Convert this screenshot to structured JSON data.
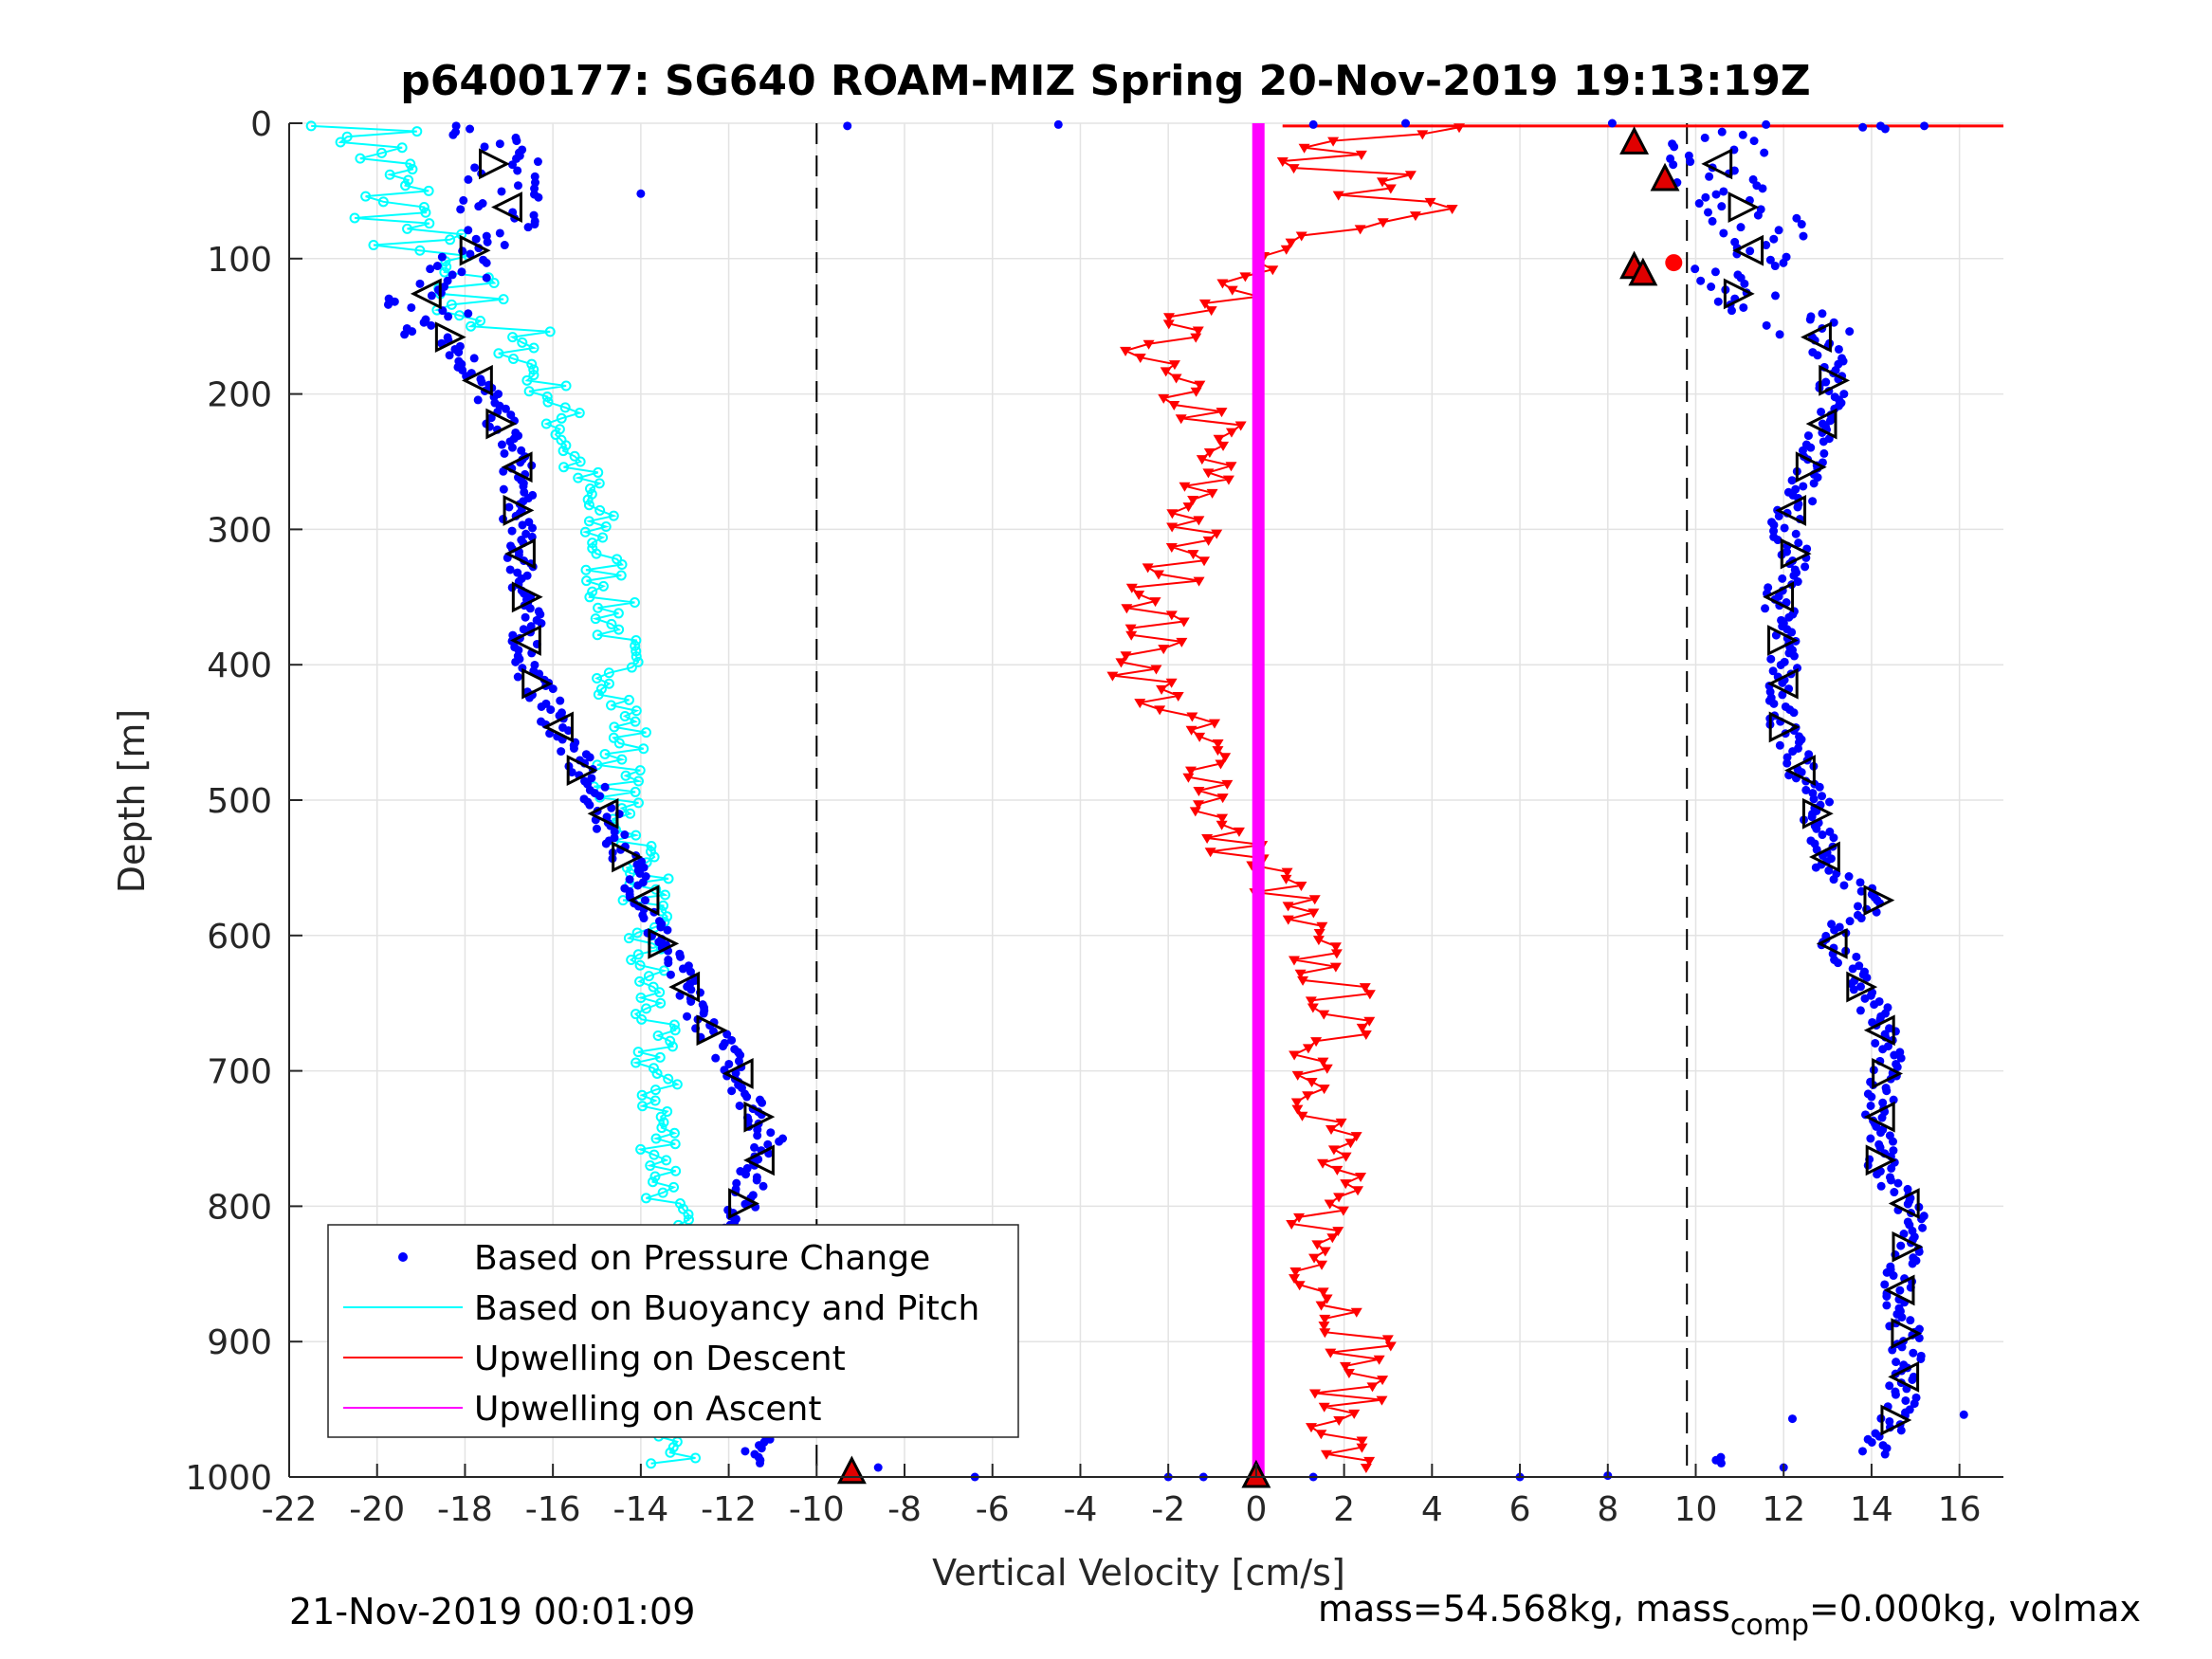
{
  "chart_data": {
    "type": "scatter",
    "title": "p6400177: SG640 ROAM-MIZ Spring 20-Nov-2019 19:13:19Z",
    "xlabel": "Vertical Velocity [cm/s]",
    "ylabel": "Depth [m]",
    "xlim": [
      -22,
      17
    ],
    "ylim": [
      1000,
      0
    ],
    "y_reversed": true,
    "grid": true,
    "x_ticks": [
      "-22",
      "-20",
      "-18",
      "-16",
      "-14",
      "-12",
      "-10",
      "-8",
      "-6",
      "-4",
      "-2",
      "0",
      "2",
      "4",
      "6",
      "8",
      "10",
      "12",
      "14",
      "16"
    ],
    "y_ticks": [
      "0",
      "100",
      "200",
      "300",
      "400",
      "500",
      "600",
      "700",
      "800",
      "900",
      "1000"
    ],
    "legend": {
      "placement": "bottom-left",
      "entries": [
        {
          "label": "Based on Pressure Change",
          "color": "#0000ff",
          "style": "dots"
        },
        {
          "label": "Based on Buoyancy and Pitch",
          "color": "#00ffff",
          "style": "line"
        },
        {
          "label": "Upwelling on Descent",
          "color": "#ff0000",
          "style": "line"
        },
        {
          "label": "Upwelling on Ascent",
          "color": "#ff00ff",
          "style": "line"
        }
      ]
    },
    "dashed_reference_lines_x": [
      -10,
      9.8
    ],
    "series": [
      {
        "name": "Based on Pressure Change (descent)",
        "color": "#0000ff",
        "marker": "dot",
        "depth": [
          5,
          20,
          40,
          60,
          80,
          100,
          130,
          160,
          200,
          250,
          300,
          350,
          400,
          450,
          500,
          550,
          600,
          650,
          700,
          750,
          800,
          850,
          900,
          950,
          985
        ],
        "velocity": [
          -17.8,
          -17.5,
          -17.2,
          -17.0,
          -17.3,
          -18.0,
          -19.0,
          -18.3,
          -17.5,
          -16.8,
          -16.8,
          -16.6,
          -16.6,
          -15.8,
          -15.0,
          -14.2,
          -13.6,
          -12.8,
          -11.8,
          -11.1,
          -11.7,
          -11.9,
          -11.7,
          -11.5,
          -11.3
        ]
      },
      {
        "name": "Based on Pressure Change (ascent)",
        "color": "#0000ff",
        "marker": "dot",
        "depth": [
          985,
          950,
          900,
          850,
          810,
          770,
          730,
          690,
          650,
          600,
          575,
          550,
          500,
          450,
          400,
          350,
          320,
          300,
          270,
          240,
          210,
          180,
          150,
          125,
          100,
          80,
          60,
          40,
          20,
          5
        ],
        "velocity": [
          14.0,
          14.7,
          14.8,
          14.6,
          15.0,
          14.2,
          14.2,
          14.4,
          14.0,
          13.0,
          14.2,
          13.0,
          12.7,
          12.0,
          12.0,
          11.9,
          12.3,
          11.9,
          12.5,
          12.7,
          13.0,
          13.2,
          12.6,
          10.9,
          11.0,
          11.7,
          11.0,
          10.5,
          10.5,
          10.6
        ]
      },
      {
        "name": "Based on Buoyancy and Pitch",
        "color": "#00ffff",
        "marker": "o-line",
        "depth": [
          5,
          20,
          40,
          60,
          80,
          100,
          130,
          160,
          200,
          250,
          300,
          350,
          400,
          450,
          500,
          550,
          600,
          650,
          700,
          750,
          800,
          850,
          900,
          950,
          985
        ],
        "velocity": [
          -20.2,
          -20.0,
          -19.8,
          -19.5,
          -19.2,
          -19.0,
          -18.0,
          -17.0,
          -16.0,
          -15.5,
          -15.0,
          -14.7,
          -14.5,
          -14.3,
          -14.6,
          -13.8,
          -14.0,
          -13.8,
          -13.7,
          -13.5,
          -13.4,
          -13.2,
          -13.3,
          -13.4,
          -13.3
        ]
      },
      {
        "name": "Upwelling on Descent",
        "color": "#ff0000",
        "marker": "v-line",
        "depth": [
          5,
          20,
          40,
          60,
          80,
          100,
          120,
          150,
          180,
          220,
          260,
          300,
          340,
          380,
          410,
          450,
          480,
          520,
          560,
          600,
          650,
          700,
          750,
          800,
          850,
          900,
          950,
          990
        ],
        "velocity": [
          5.0,
          3.0,
          1.5,
          2.5,
          2.0,
          0.0,
          -1.5,
          -2.0,
          -2.5,
          -1.0,
          -1.2,
          -1.5,
          -2.0,
          -2.4,
          -2.5,
          -1.5,
          -0.8,
          -1.0,
          0.5,
          1.0,
          2.0,
          1.5,
          1.8,
          1.5,
          1.5,
          2.5,
          2.0,
          2.0
        ]
      },
      {
        "name": "Upwelling on Ascent",
        "color": "#ff00ff",
        "marker": "line",
        "depth": [
          0,
          1000
        ],
        "velocity": [
          0.05,
          0.05
        ]
      }
    ],
    "markers": [
      {
        "kind": "triangle-up-red",
        "velocity": 8.6,
        "depth": 15
      },
      {
        "kind": "triangle-up-red",
        "velocity": 9.3,
        "depth": 42
      },
      {
        "kind": "triangle-up-red",
        "velocity": 8.6,
        "depth": 107
      },
      {
        "kind": "triangle-up-red",
        "velocity": 8.8,
        "depth": 112
      },
      {
        "kind": "triangle-up-red",
        "velocity": -9.2,
        "depth": 997
      },
      {
        "kind": "triangle-up-red",
        "velocity": 0.0,
        "depth": 1000
      },
      {
        "kind": "circle-red",
        "velocity": 9.5,
        "depth": 103
      }
    ]
  },
  "footer": {
    "left_timestamp": "21-Nov-2019 00:01:09",
    "right_prefix": "mass=54.568kg, mass",
    "right_sub": "comp",
    "right_suffix": "=0.000kg, volmax"
  },
  "colors": {
    "pressure": "#0000ff",
    "buoyancy": "#00ffff",
    "descent": "#ff0000",
    "ascent": "#ff00ff",
    "grid": "#e3e3e3",
    "axis": "#262626"
  }
}
